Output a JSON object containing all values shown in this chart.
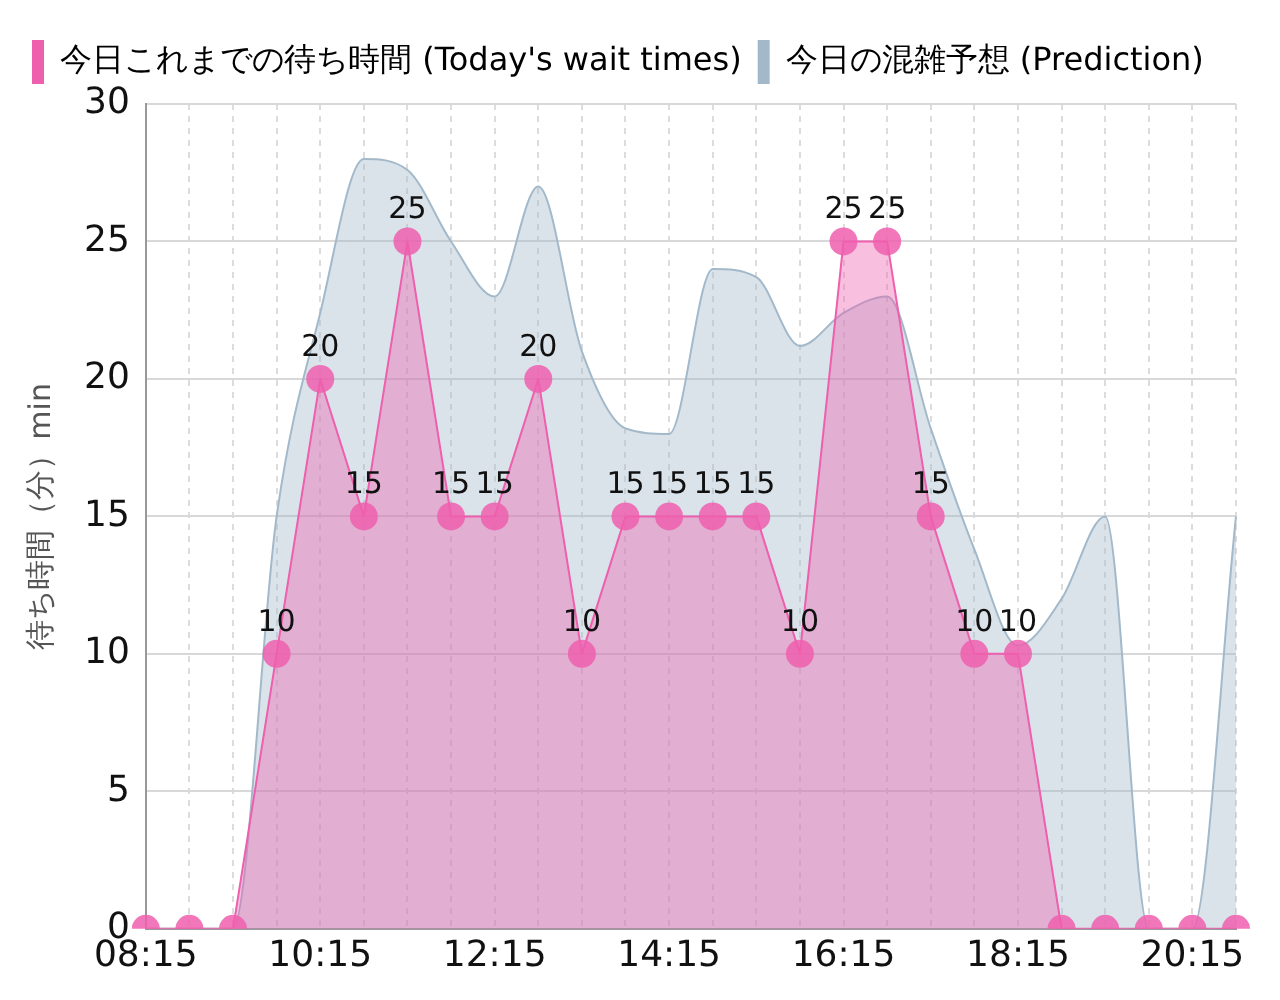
{
  "chart_data": {
    "type": "area",
    "ylabel": "待ち時間（分）min",
    "categories": [
      "08:15",
      null,
      null,
      null,
      "10:15",
      null,
      null,
      null,
      "12:15",
      null,
      null,
      null,
      "14:15",
      null,
      null,
      null,
      "16:15",
      null,
      null,
      null,
      "18:15",
      null,
      null,
      null,
      "20:15",
      null
    ],
    "series": [
      {
        "name": "今日これまでの待ち時間 (Today's wait times)",
        "color": "#ee5fae",
        "marker": "circle",
        "values": [
          0,
          0,
          0,
          10,
          20,
          15,
          25,
          15,
          15,
          20,
          10,
          15,
          15,
          15,
          15,
          10,
          25,
          25,
          15,
          10,
          10,
          0,
          0,
          0,
          0,
          0
        ],
        "value_labels": [
          null,
          null,
          null,
          "10",
          "20",
          "15",
          "25",
          "15",
          "15",
          "20",
          "10",
          "15",
          "15",
          "15",
          "15",
          "10",
          "25",
          "25",
          "15",
          "10",
          "10",
          null,
          null,
          null,
          null,
          null
        ]
      },
      {
        "name": "今日の混雑予想 (Prediction)",
        "color": "#a3b9ca",
        "marker": "none",
        "values": [
          0,
          0,
          0,
          15,
          22.4,
          28,
          27.6,
          25,
          23,
          27,
          21,
          18.2,
          18,
          24,
          23.7,
          21.2,
          22.4,
          23,
          18.2,
          13.8,
          10.3,
          12,
          15,
          0,
          0,
          15
        ]
      }
    ],
    "ylim": [
      0,
      30
    ],
    "yticks": [
      0,
      5,
      10,
      15,
      20,
      25,
      30
    ],
    "grid": true,
    "legend": "top left"
  }
}
